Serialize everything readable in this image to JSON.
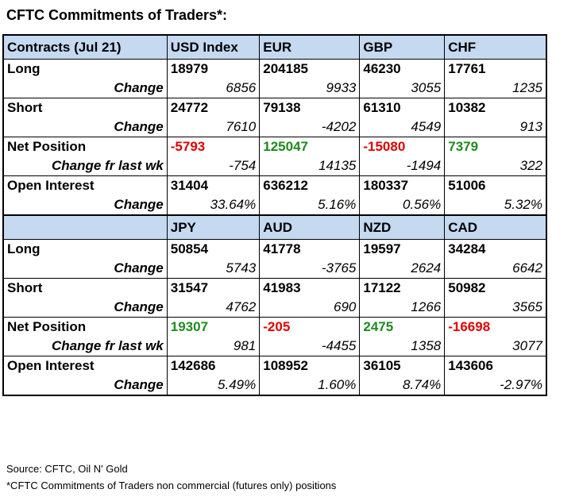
{
  "title": "CFTC Commitments of Traders*:",
  "colors": {
    "header_bg": "#c5d9f1",
    "positive": "#1e8a1e",
    "negative": "#e00000"
  },
  "table": {
    "header1": [
      "Contracts (Jul 21)",
      "USD Index",
      "EUR",
      "GBP",
      "CHF"
    ],
    "block1": {
      "long": [
        "Long",
        "18979",
        "204185",
        "46230",
        "17761"
      ],
      "long_change": [
        "Change",
        "6856",
        "9933",
        "3055",
        "1235"
      ],
      "short": [
        "Short",
        "24772",
        "79138",
        "61310",
        "10382"
      ],
      "short_change": [
        "Change",
        "7610",
        "-4202",
        "4549",
        "913"
      ],
      "net": [
        "Net Position",
        "-5793",
        "125047",
        "-15080",
        "7379"
      ],
      "net_change": [
        "Change fr last wk",
        "-754",
        "14135",
        "-1494",
        "322"
      ],
      "oi": [
        "Open Interest",
        "31404",
        "636212",
        "180337",
        "51006"
      ],
      "oi_change": [
        "Change",
        "33.64%",
        "5.16%",
        "0.56%",
        "5.32%"
      ]
    },
    "header2": [
      "",
      "JPY",
      "AUD",
      "NZD",
      "CAD"
    ],
    "block2": {
      "long": [
        "Long",
        "50854",
        "41778",
        "19597",
        "34284"
      ],
      "long_change": [
        "Change",
        "5743",
        "-3765",
        "2624",
        "6642"
      ],
      "short": [
        "Short",
        "31547",
        "41983",
        "17122",
        "50982"
      ],
      "short_change": [
        "Change",
        "4762",
        "690",
        "1266",
        "3565"
      ],
      "net": [
        "Net Position",
        "19307",
        "-205",
        "2475",
        "-16698"
      ],
      "net_change": [
        "Change fr last wk",
        "981",
        "-4455",
        "1358",
        "3077"
      ],
      "oi": [
        "Open Interest",
        "142686",
        "108952",
        "36105",
        "143606"
      ],
      "oi_change": [
        "Change",
        "5.49%",
        "1.60%",
        "8.74%",
        "-2.97%"
      ]
    }
  },
  "footer": {
    "source": "Source: CFTC, Oil N' Gold",
    "note": "*CFTC Commitments of Traders non commercial (futures only) positions"
  }
}
